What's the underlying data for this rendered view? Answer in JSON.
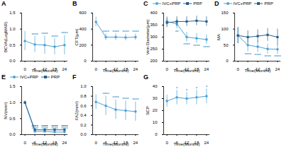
{
  "chart_data": [
    {
      "type": "line",
      "title": "A",
      "x_label": "Time(Months)",
      "y_label": "BCVA(LogMAR)",
      "x": [
        0,
        6,
        12,
        18,
        24
      ],
      "xlim": [
        -2,
        26
      ],
      "xticks": [
        0,
        6,
        12,
        18,
        24
      ],
      "ylim": [
        0,
        1.5
      ],
      "yticks": [
        {
          "value": 0,
          "label": "0.0"
        },
        0.5,
        {
          "value": 1,
          "label": "1.0"
        },
        1.5
      ],
      "series": [
        {
          "color": "#4ba3d6",
          "marker": "circle",
          "values": [
            0.63,
            0.52,
            0.5,
            0.45,
            0.5
          ],
          "errors": [
            0.3,
            0.25,
            0.28,
            0.25,
            0.3
          ],
          "significance": [
            null,
            "****",
            "****",
            "****",
            "****"
          ]
        }
      ]
    },
    {
      "type": "line",
      "title": "B",
      "x_label": "Time(Months)",
      "y_label": "CFT(μm)",
      "x": [
        0,
        6,
        12,
        18,
        24
      ],
      "xlim": [
        -2,
        26
      ],
      "xticks": [
        0,
        6,
        12,
        18,
        24
      ],
      "ylim": [
        0,
        600
      ],
      "yticks": [
        0,
        200,
        400,
        600
      ],
      "series": [
        {
          "color": "#4ba3d6",
          "marker": "circle",
          "values": [
            490,
            300,
            300,
            295,
            300
          ],
          "errors": [
            60,
            40,
            40,
            40,
            40
          ],
          "significance": [
            null,
            "****",
            "****",
            "****",
            "****"
          ]
        }
      ]
    },
    {
      "type": "line",
      "title": "C",
      "x_label": "Time(Months)",
      "y_label": "Vein Diameter(μm)",
      "legend": "top",
      "x": [
        0,
        6,
        12,
        18,
        24
      ],
      "xlim": [
        -2,
        26
      ],
      "xticks": [
        0,
        6,
        12,
        18,
        24
      ],
      "ylim": [
        200,
        400
      ],
      "yticks": [
        200,
        250,
        300,
        350,
        400
      ],
      "series": [
        {
          "name": "IVC+PRP",
          "color": "#4ba3d6",
          "marker": "circle",
          "values": [
            365,
            355,
            300,
            295,
            290
          ],
          "errors": [
            20,
            20,
            20,
            20,
            20
          ],
          "significance": [
            null,
            "**",
            "****",
            "****",
            "****"
          ]
        },
        {
          "name": "PRP",
          "color": "#2a5f8a",
          "marker": "square",
          "values": [
            360,
            365,
            365,
            368,
            365
          ],
          "errors": [
            20,
            20,
            20,
            20,
            20
          ]
        }
      ]
    },
    {
      "type": "line",
      "title": "D",
      "x_label": "Time(Months)",
      "y_label": "MA",
      "legend": "top",
      "x": [
        0,
        6,
        12,
        18,
        24
      ],
      "xlim": [
        -2,
        26
      ],
      "xticks": [
        0,
        6,
        12,
        18,
        24
      ],
      "ylim": [
        0,
        150
      ],
      "yticks": [
        0,
        50,
        100,
        150
      ],
      "series": [
        {
          "name": "IVC+PRP",
          "color": "#4ba3d6",
          "marker": "circle",
          "values": [
            80,
            50,
            45,
            38,
            37
          ],
          "errors": [
            25,
            20,
            18,
            15,
            15
          ],
          "significance": [
            null,
            "****",
            "****",
            "****",
            "****"
          ]
        },
        {
          "name": "PRP",
          "color": "#2a5f8a",
          "marker": "square",
          "values": [
            80,
            75,
            78,
            82,
            75
          ],
          "errors": [
            25,
            20,
            20,
            20,
            25
          ]
        }
      ]
    },
    {
      "type": "line",
      "title": "E",
      "x_label": "Time(Months)",
      "y_label": "NV(mm²)",
      "legend": "top",
      "x": [
        0,
        6,
        12,
        18,
        24
      ],
      "xlim": [
        -2,
        26
      ],
      "xticks": [
        0,
        6,
        12,
        18,
        24
      ],
      "ylim": [
        0,
        1.5
      ],
      "yticks": [
        {
          "value": 0,
          "label": "0.0"
        },
        0.5,
        {
          "value": 1,
          "label": "1.0"
        },
        1.5
      ],
      "series": [
        {
          "name": "IVC+PRP",
          "color": "#4ba3d6",
          "marker": "circle",
          "values": [
            1.0,
            0.1,
            0.1,
            0.08,
            0.08
          ],
          "errors": [
            0.05,
            0.03,
            0.03,
            0.03,
            0.03
          ],
          "significance": [
            null,
            "****",
            "****",
            "****",
            "****"
          ]
        },
        {
          "name": "PRP",
          "color": "#2a5f8a",
          "marker": "square",
          "values": [
            1.0,
            0.15,
            0.15,
            0.15,
            0.15
          ],
          "errors": [
            0.05,
            0.03,
            0.03,
            0.03,
            0.03
          ],
          "significance": [
            null,
            "****",
            "****",
            "****",
            "****"
          ]
        }
      ]
    },
    {
      "type": "line",
      "title": "F",
      "x_label": "Time(Months)",
      "y_label": "FAZ(mm²)",
      "x": [
        0,
        6,
        12,
        18,
        24
      ],
      "xlim": [
        -2,
        26
      ],
      "xticks": [
        0,
        6,
        12,
        18,
        24
      ],
      "ylim": [
        0,
        1
      ],
      "yticks": [
        {
          "value": 0,
          "label": "0.0"
        },
        0.2,
        0.4,
        0.6,
        0.8,
        {
          "value": 1,
          "label": "1.0"
        }
      ],
      "series": [
        {
          "color": "#4ba3d6",
          "marker": "circle",
          "values": [
            0.68,
            0.6,
            0.52,
            0.5,
            0.48
          ],
          "errors": [
            0.15,
            0.2,
            0.2,
            0.2,
            0.2
          ],
          "significance": [
            null,
            "****",
            "****",
            "****",
            "****"
          ]
        }
      ]
    },
    {
      "type": "line",
      "title": "G",
      "x_label": "Time(Months)",
      "y_label": "SCP",
      "x": [
        0,
        6,
        12,
        18,
        24
      ],
      "xlim": [
        -2,
        26
      ],
      "xticks": [
        0,
        6,
        12,
        18,
        24
      ],
      "ylim": [
        0,
        40
      ],
      "yticks": [
        0,
        10,
        20,
        30,
        40
      ],
      "series": [
        {
          "color": "#4ba3d6",
          "marker": "circle",
          "values": [
            28,
            31,
            30,
            31,
            32
          ],
          "errors": [
            5,
            6,
            5,
            6,
            6
          ],
          "significance": [
            null,
            "*",
            "*",
            "*",
            "*"
          ]
        }
      ]
    }
  ]
}
